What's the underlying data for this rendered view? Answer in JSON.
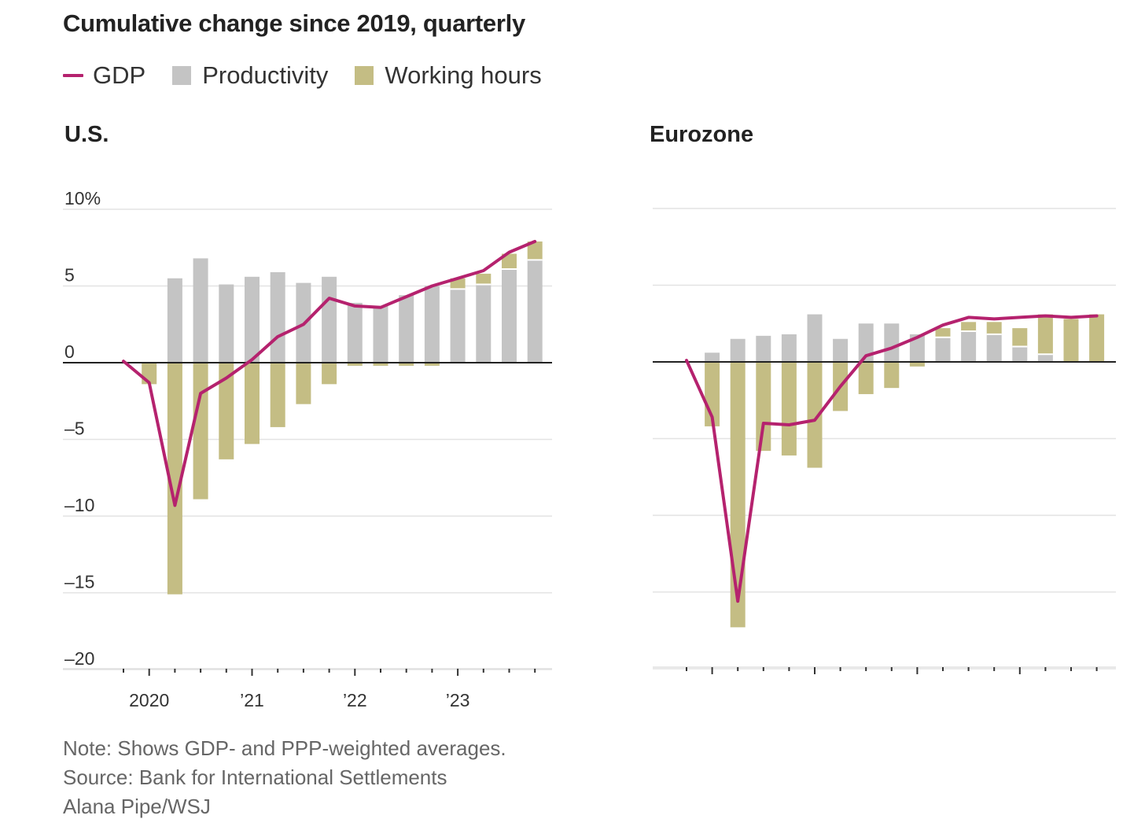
{
  "header": {
    "title": "Cumulative change since 2019, quarterly"
  },
  "legend": {
    "items": [
      {
        "label": "GDP",
        "kind": "line",
        "color": "#b5226e"
      },
      {
        "label": "Productivity",
        "kind": "box",
        "color": "#c4c4c4"
      },
      {
        "label": "Working hours",
        "kind": "box",
        "color": "#c4bd84"
      }
    ]
  },
  "notes": {
    "line1": "Note: Shows GDP- and PPP-weighted averages.",
    "line2": "Source: Bank for International Settlements",
    "line3": "Alana Pipe/WSJ"
  },
  "chart_data": [
    {
      "type": "bar",
      "title": "U.S.",
      "categories": [
        "2019Q4",
        "2020Q1",
        "2020Q2",
        "2020Q3",
        "2020Q4",
        "2021Q1",
        "2021Q2",
        "2021Q3",
        "2021Q4",
        "2022Q1",
        "2022Q2",
        "2022Q3",
        "2022Q4",
        "2023Q1",
        "2023Q2",
        "2023Q3",
        "2023Q4"
      ],
      "ylim": [
        -20,
        10
      ],
      "yticks": [
        10,
        5,
        0,
        -5,
        -10,
        -15,
        -20
      ],
      "ytick_labels": [
        "10%",
        "5",
        "0",
        "–5",
        "–10",
        "–15",
        "–20"
      ],
      "xtick_labels": [
        {
          "at": "2020Q1",
          "label": "2020"
        },
        {
          "at": "2021Q1",
          "label": "’21"
        },
        {
          "at": "2022Q1",
          "label": "’22"
        },
        {
          "at": "2023Q1",
          "label": "’23"
        }
      ],
      "series": [
        {
          "name": "Productivity",
          "values": [
            0,
            0,
            5.5,
            6.8,
            5.1,
            5.6,
            5.9,
            5.2,
            5.6,
            3.9,
            3.7,
            4.4,
            5.0,
            4.8,
            5.1,
            6.1,
            6.7
          ]
        },
        {
          "name": "Working hours",
          "values": [
            0,
            -1.4,
            -15.1,
            -8.9,
            -6.3,
            -5.3,
            -4.2,
            -2.7,
            -1.4,
            -0.2,
            -0.2,
            -0.2,
            -0.2,
            0.7,
            0.7,
            1.0,
            1.2
          ]
        },
        {
          "name": "GDP",
          "values": [
            0.1,
            -1.3,
            -9.3,
            -2.0,
            -1.0,
            0.2,
            1.7,
            2.5,
            4.2,
            3.7,
            3.6,
            4.3,
            5.0,
            5.5,
            6.0,
            7.2,
            7.9
          ]
        }
      ]
    },
    {
      "type": "bar",
      "title": "Eurozone",
      "categories": [
        "2019Q4",
        "2020Q1",
        "2020Q2",
        "2020Q3",
        "2020Q4",
        "2021Q1",
        "2021Q2",
        "2021Q3",
        "2021Q4",
        "2022Q1",
        "2022Q2",
        "2022Q3",
        "2022Q4",
        "2023Q1",
        "2023Q2",
        "2023Q3",
        "2023Q4"
      ],
      "ylim": [
        -20,
        10
      ],
      "yticks": [
        10,
        5,
        0,
        -5,
        -10,
        -15,
        -20
      ],
      "ytick_labels": [],
      "xtick_labels": [],
      "series": [
        {
          "name": "Productivity",
          "values": [
            0,
            0.6,
            1.5,
            1.7,
            1.8,
            3.1,
            1.5,
            2.5,
            2.5,
            1.8,
            1.6,
            2.0,
            1.8,
            1.0,
            0.5,
            0,
            0
          ]
        },
        {
          "name": "Working hours",
          "values": [
            0,
            -4.2,
            -17.3,
            -5.8,
            -6.1,
            -6.9,
            -3.2,
            -2.1,
            -1.7,
            -0.3,
            0.6,
            0.6,
            0.8,
            1.2,
            2.6,
            2.8,
            3.1
          ]
        },
        {
          "name": "GDP",
          "values": [
            0.1,
            -3.6,
            -15.6,
            -4.0,
            -4.1,
            -3.8,
            -1.6,
            0.4,
            0.9,
            1.6,
            2.4,
            2.9,
            2.8,
            2.9,
            3.0,
            2.9,
            3.0
          ]
        }
      ]
    }
  ]
}
